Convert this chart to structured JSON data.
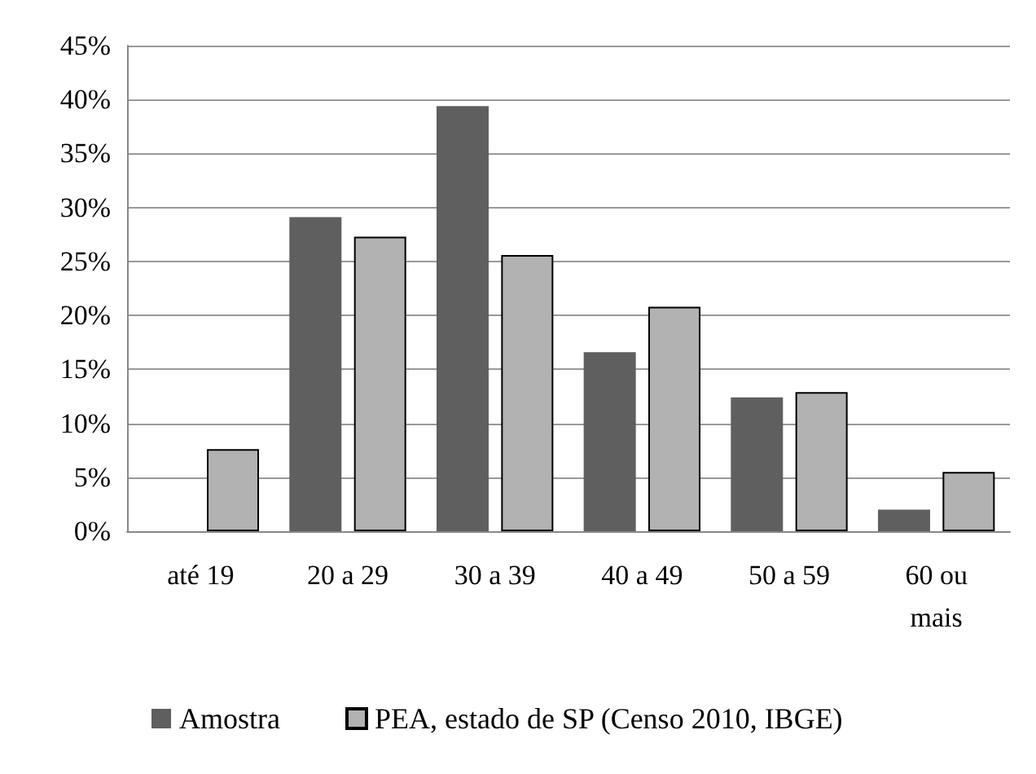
{
  "chart_data": {
    "type": "bar",
    "categories": [
      "até 19",
      "20 a 29",
      "30 a 39",
      "40 a 49",
      "50 a 59",
      "60 ou\nmais"
    ],
    "series": [
      {
        "name": "Amostra",
        "color": "#5f5f5f",
        "values": [
          0,
          29.1,
          39.4,
          16.6,
          12.4,
          2.0
        ]
      },
      {
        "name": "PEA, estado de SP (Censo 2010, IBGE)",
        "color": "#b2b2b2",
        "values": [
          7.6,
          27.3,
          25.6,
          20.8,
          12.9,
          5.5
        ]
      }
    ],
    "ylim": [
      0,
      45
    ],
    "yticks": [
      {
        "value": 0,
        "label": "0%"
      },
      {
        "value": 5,
        "label": "5%"
      },
      {
        "value": 10,
        "label": "10%"
      },
      {
        "value": 15,
        "label": "15%"
      },
      {
        "value": 20,
        "label": "20%"
      },
      {
        "value": 25,
        "label": "25%"
      },
      {
        "value": 30,
        "label": "30%"
      },
      {
        "value": 35,
        "label": "35%"
      },
      {
        "value": 40,
        "label": "40%"
      },
      {
        "value": 45,
        "label": "45%"
      }
    ],
    "grid": "y",
    "legend": "bottom"
  }
}
